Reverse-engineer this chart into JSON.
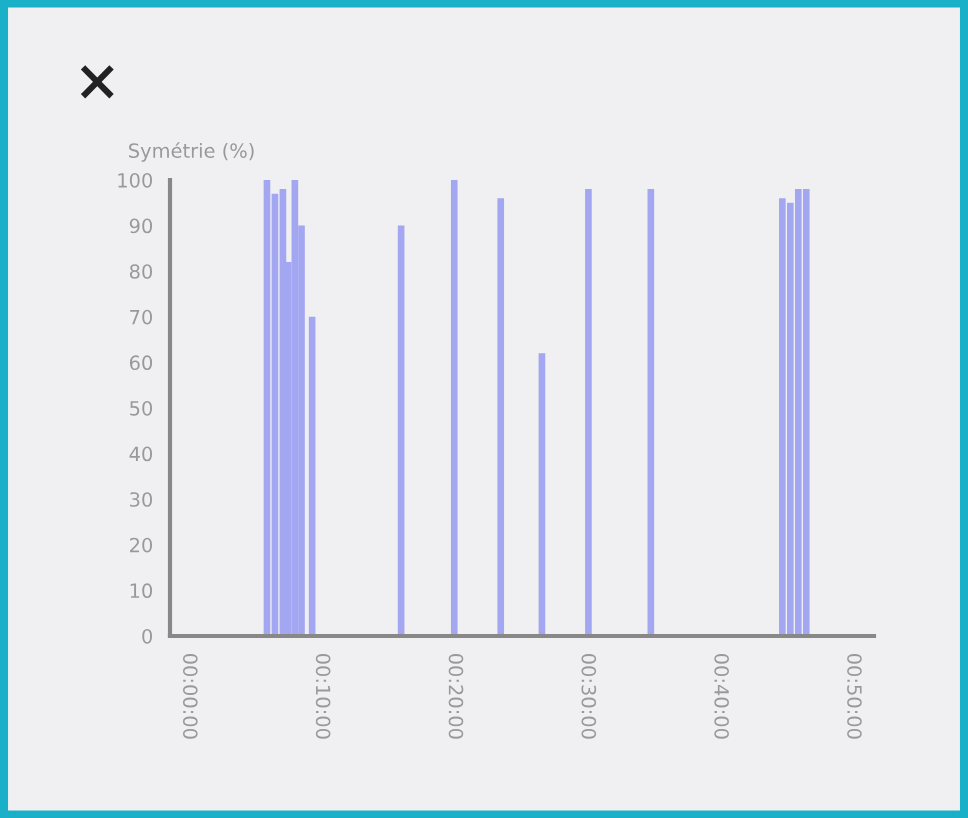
{
  "chart_data": {
    "type": "bar",
    "ylabel": "Symétrie (%)",
    "color": "#a3a6f0",
    "x": [
      5.9,
      6.5,
      7.1,
      7.5,
      8.0,
      8.5,
      9.3,
      16.0,
      20.0,
      23.5,
      26.6,
      30.1,
      34.8,
      44.7,
      45.3,
      45.9,
      46.5
    ],
    "values": [
      100,
      97,
      98,
      82,
      100,
      90,
      70,
      90,
      100,
      96,
      62,
      98,
      98,
      96,
      95,
      98,
      98
    ],
    "xlim": [
      -1.4,
      51.6
    ],
    "xticks": [
      {
        "value": 0,
        "label": "00:00:00"
      },
      {
        "value": 10,
        "label": "00:10:00"
      },
      {
        "value": 20,
        "label": "00:20:00"
      },
      {
        "value": 30,
        "label": "00:30:00"
      },
      {
        "value": 40,
        "label": "00:40:00"
      },
      {
        "value": 50,
        "label": "00:50:00"
      }
    ],
    "ylim": [
      0,
      100
    ],
    "yticks": [
      0,
      10,
      20,
      30,
      40,
      50,
      60,
      70,
      80,
      90,
      100
    ],
    "grid": false,
    "legend": false
  }
}
